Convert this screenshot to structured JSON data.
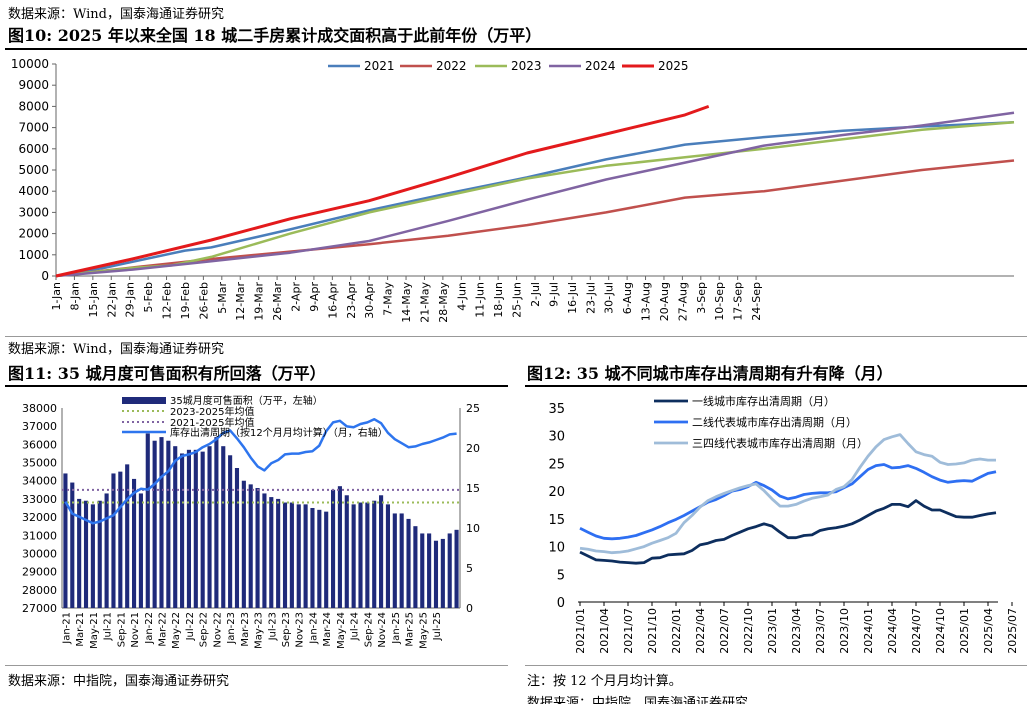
{
  "top": {
    "source": "数据来源：Wind，国泰海通证券研究",
    "figure_title": "图10:  2025 年以来全国 18 城二手房累计成交面积高于此前年份（万平）"
  },
  "middle": {
    "source": "数据来源：Wind，国泰海通证券研究",
    "fig11_title": "图11:  35 城月度可售面积有所回落（万平）",
    "fig12_title": "图12:  35 城不同城市库存出清周期有升有降（月）"
  },
  "bottom": {
    "source_left": "数据来源：中指院，国泰海通证券研究",
    "note_right": "注：按 12 个月月均计算。",
    "source_right_partial": "数据来源：中指院，国泰海通证券研究"
  },
  "colors": {
    "s2021": "#4a7ebb",
    "s2022": "#c0504d",
    "s2023": "#9bbb59",
    "s2024": "#8064a2",
    "s2025": "#e31a1c",
    "bar": "#1f2a7a",
    "avg1": "#9bbb59",
    "avg2": "#8064a2",
    "line11": "#2e75ee",
    "first": "#0d2e5e",
    "second": "#2e6ff2",
    "third": "#9fbcd9"
  },
  "chart_data": [
    {
      "id": "fig10",
      "type": "line",
      "title": "2025 年以来全国 18 城二手房累计成交面积高于此前年份（万平）",
      "ylim": [
        0,
        10000
      ],
      "yticks": [
        "0",
        "1000",
        "2000",
        "3000",
        "4000",
        "5000",
        "6000",
        "7000",
        "8000",
        "9000",
        "10000"
      ],
      "xlim": [
        1,
        365
      ],
      "xtick_labels": [
        "1-Jan",
        "8-Jan",
        "15-Jan",
        "22-Jan",
        "29-Jan",
        "5-Feb",
        "12-Feb",
        "19-Feb",
        "26-Feb",
        "5-Mar",
        "12-Mar",
        "19-Mar",
        "26-Mar",
        "2-Apr",
        "9-Apr",
        "16-Apr",
        "23-Apr",
        "30-Apr",
        "7-May",
        "14-May",
        "21-May",
        "28-May",
        "4-Jun",
        "11-Jun",
        "18-Jun",
        "25-Jun",
        "2-Jul",
        "9-Jul",
        "16-Jul",
        "23-Jul",
        "30-Jul",
        "6-Aug",
        "13-Aug",
        "20-Aug",
        "27-Aug",
        "3-Sep",
        "10-Sep",
        "17-Sep",
        "24-Sep"
      ],
      "legend": [
        "2021",
        "2022",
        "2023",
        "2024",
        "2025"
      ],
      "series": [
        {
          "name": "2021",
          "x": [
            1,
            20,
            35,
            50,
            60,
            90,
            120,
            150,
            180,
            210,
            240,
            270,
            300,
            330,
            365
          ],
          "y": [
            0,
            400,
            800,
            1200,
            1350,
            2200,
            3100,
            3900,
            4650,
            5500,
            6200,
            6550,
            6850,
            7050,
            7250
          ]
        },
        {
          "name": "2022",
          "x": [
            1,
            30,
            60,
            90,
            120,
            150,
            180,
            210,
            240,
            270,
            300,
            330,
            365
          ],
          "y": [
            0,
            400,
            800,
            1150,
            1500,
            1900,
            2400,
            3000,
            3700,
            4000,
            4500,
            5000,
            5450
          ]
        },
        {
          "name": "2023",
          "x": [
            1,
            30,
            45,
            60,
            90,
            120,
            150,
            180,
            210,
            240,
            270,
            300,
            330,
            365
          ],
          "y": [
            0,
            380,
            500,
            900,
            2000,
            3000,
            3800,
            4600,
            5200,
            5600,
            6000,
            6450,
            6900,
            7250
          ]
        },
        {
          "name": "2024",
          "x": [
            1,
            30,
            60,
            90,
            120,
            150,
            180,
            210,
            240,
            270,
            300,
            330,
            365
          ],
          "y": [
            0,
            300,
            700,
            1100,
            1650,
            2600,
            3600,
            4550,
            5350,
            6150,
            6650,
            7100,
            7700
          ]
        },
        {
          "name": "2025",
          "x": [
            1,
            30,
            60,
            90,
            120,
            150,
            180,
            210,
            240,
            249
          ],
          "y": [
            0,
            800,
            1700,
            2700,
            3550,
            4650,
            5800,
            6700,
            7600,
            8000
          ]
        }
      ]
    },
    {
      "id": "fig11",
      "type": "bar",
      "title": "35 城月度可售面积有所回落（万平）",
      "ylim_left": [
        27000,
        38000
      ],
      "yticks_left": [
        "27000",
        "28000",
        "29000",
        "30000",
        "31000",
        "32000",
        "33000",
        "34000",
        "35000",
        "36000",
        "37000",
        "38000"
      ],
      "ylim_right": [
        0,
        25
      ],
      "yticks_right": [
        "0",
        "5",
        "10",
        "15",
        "20",
        "25"
      ],
      "xtick_labels": [
        "Jan-21",
        "Mar-21",
        "May-21",
        "Jul-21",
        "Sep-21",
        "Nov-21",
        "Jan-22",
        "Mar-22",
        "May-22",
        "Jul-22",
        "Sep-22",
        "Nov-22",
        "Jan-23",
        "Mar-23",
        "May-23",
        "Jul-23",
        "Sep-23",
        "Nov-23",
        "Jan-24",
        "Mar-24",
        "May-24",
        "Jul-24",
        "Sep-24",
        "Nov-24",
        "Jan-25",
        "Mar-25",
        "May-25",
        "Jul-25"
      ],
      "legend": [
        "35城月度可售面积（万平，左轴）",
        "2023-2025年均值",
        "2021-2025年均值",
        "库存出清周期（按12个月月均计算）（月，右轴）"
      ],
      "bars": [
        34400,
        33900,
        33000,
        32900,
        32700,
        32900,
        33300,
        34400,
        34500,
        34900,
        34100,
        33300,
        36600,
        36200,
        36400,
        36200,
        35900,
        35500,
        35700,
        35700,
        35600,
        35900,
        36400,
        35900,
        35400,
        34700,
        34000,
        33800,
        33600,
        33300,
        33100,
        33000,
        32800,
        32800,
        32700,
        32700,
        32500,
        32400,
        32300,
        33500,
        33700,
        33200,
        32700,
        32800,
        32800,
        32900,
        33200,
        32700,
        32200,
        32200,
        31900,
        31500,
        31100,
        31100,
        30700,
        30800,
        31100,
        31300
      ],
      "avg_2023_2025": 32800,
      "avg_2021_2025": 33500,
      "line_right_axis": [
        13.3,
        11.8,
        11.4,
        11.0,
        10.6,
        10.8,
        11.2,
        11.6,
        12.6,
        13.6,
        14.4,
        14.9,
        14.8,
        15.5,
        16.4,
        17.1,
        18.4,
        19.0,
        19.2,
        19.5,
        20.1,
        20.5,
        21.1,
        21.9,
        22.2,
        21.2,
        20.1,
        18.8,
        17.7,
        17.2,
        18.1,
        18.5,
        19.2,
        19.3,
        19.3,
        19.5,
        19.6,
        20.3,
        22.1,
        23.2,
        23.4,
        22.7,
        22.6,
        23.0,
        23.2,
        23.6,
        23.1,
        21.9,
        21.1,
        20.6,
        20.1,
        20.2,
        20.5,
        20.7,
        21.0,
        21.3,
        21.7,
        21.8
      ]
    },
    {
      "id": "fig12",
      "type": "line",
      "title": "35 城不同城市库存出清周期有升有降（月）",
      "ylim": [
        0,
        35
      ],
      "yticks": [
        "0",
        "5",
        "10",
        "15",
        "20",
        "25",
        "30",
        "35"
      ],
      "xtick_labels": [
        "2021/01",
        "2021/04",
        "2021/07",
        "2021/10",
        "2022/01",
        "2022/04",
        "2022/07",
        "2022/10",
        "2023/01",
        "2023/04",
        "2023/07",
        "2023/10",
        "2024/01",
        "2024/04",
        "2024/07",
        "2024/10",
        "2025/01",
        "2025/04",
        "2025/07"
      ],
      "legend": [
        "一线城市库存出清周期（月）",
        "二线代表城市库存出清周期（月）",
        "三四线代表城市库存出清周期（月）"
      ],
      "series": [
        {
          "name": "一线城市库存出清周期（月）",
          "values": [
            9.0,
            8.3,
            7.6,
            7.5,
            7.4,
            7.2,
            7.1,
            7.0,
            7.1,
            7.9,
            8.0,
            8.5,
            8.6,
            8.7,
            9.3,
            10.3,
            10.6,
            11.1,
            11.3,
            12.0,
            12.6,
            13.2,
            13.6,
            14.1,
            13.7,
            12.6,
            11.6,
            11.6,
            12.0,
            12.1,
            12.9,
            13.2,
            13.4,
            13.7,
            14.1,
            14.8,
            15.6,
            16.4,
            16.9,
            17.6,
            17.6,
            17.2,
            18.3,
            17.3,
            16.6,
            16.6,
            16.0,
            15.4,
            15.3,
            15.3,
            15.6,
            15.9,
            16.1
          ]
        },
        {
          "name": "二线代表城市库存出清周期（月）",
          "values": [
            13.3,
            12.6,
            11.9,
            11.5,
            11.4,
            11.5,
            11.7,
            12.0,
            12.5,
            13.0,
            13.6,
            14.3,
            14.9,
            15.6,
            16.4,
            17.2,
            18.0,
            18.5,
            19.2,
            20.0,
            20.3,
            20.8,
            21.6,
            21.0,
            20.2,
            19.1,
            18.6,
            18.9,
            19.4,
            19.6,
            19.7,
            19.7,
            19.9,
            20.6,
            21.3,
            22.6,
            23.9,
            24.6,
            24.8,
            24.2,
            24.3,
            24.6,
            24.1,
            23.4,
            22.6,
            22.0,
            21.6,
            21.8,
            21.9,
            21.8,
            22.5,
            23.2,
            23.5
          ]
        },
        {
          "name": "三四线代表城市库存出清周期（月）",
          "values": [
            9.7,
            9.5,
            9.2,
            9.1,
            8.9,
            9.0,
            9.2,
            9.6,
            10.0,
            10.6,
            11.1,
            11.6,
            12.4,
            14.3,
            15.6,
            17.1,
            18.3,
            19.0,
            19.6,
            20.1,
            20.6,
            21.0,
            21.3,
            20.1,
            18.6,
            17.3,
            17.3,
            17.6,
            18.2,
            18.7,
            19.0,
            19.3,
            20.3,
            20.8,
            22.1,
            24.3,
            26.3,
            28.0,
            29.3,
            29.8,
            30.2,
            28.6,
            27.1,
            26.6,
            26.3,
            25.2,
            24.8,
            24.9,
            25.1,
            25.6,
            25.8,
            25.6,
            25.6
          ]
        }
      ]
    }
  ]
}
